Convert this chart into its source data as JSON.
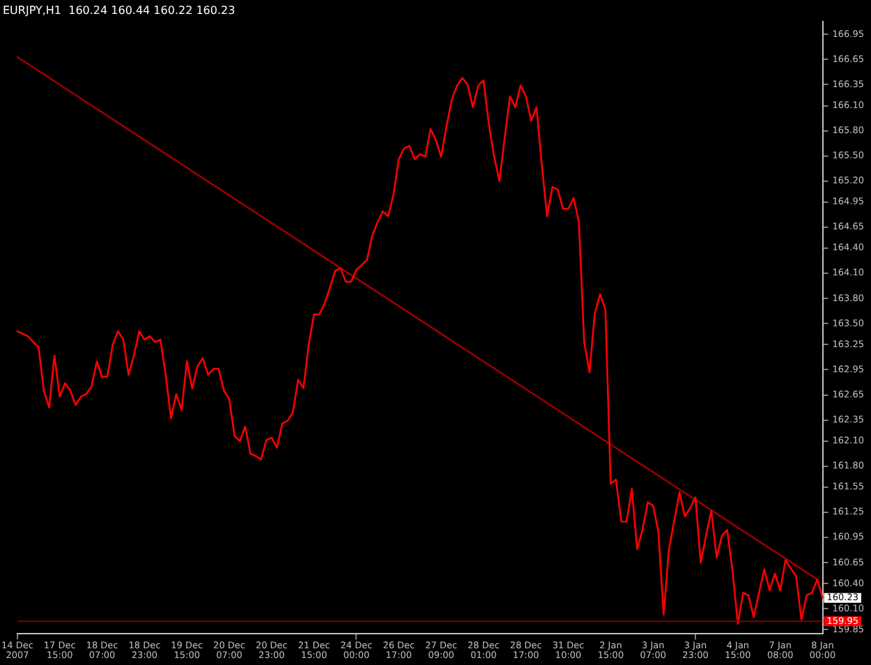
{
  "chart_data": {
    "type": "line",
    "title": "EURJPY,H1  160.24 160.44 160.22 160.23",
    "categories": [
      "14 Dec 2007",
      null,
      null,
      null,
      null,
      null,
      null,
      null,
      "17 Dec 15:00",
      null,
      null,
      null,
      null,
      null,
      null,
      null,
      "18 Dec 07:00",
      null,
      null,
      null,
      null,
      null,
      null,
      null,
      "18 Dec 23:00",
      null,
      null,
      null,
      null,
      null,
      null,
      null,
      "19 Dec 15:00",
      null,
      null,
      null,
      null,
      null,
      null,
      null,
      "20 Dec 07:00",
      null,
      null,
      null,
      null,
      null,
      null,
      null,
      "20 Dec 23:00",
      null,
      null,
      null,
      null,
      null,
      null,
      null,
      "21 Dec 15:00",
      null,
      null,
      null,
      null,
      null,
      null,
      null,
      "24 Dec 00:00",
      null,
      null,
      null,
      null,
      null,
      null,
      null,
      "26 Dec 17:00",
      null,
      null,
      null,
      null,
      null,
      null,
      null,
      "27 Dec 09:00",
      null,
      null,
      null,
      null,
      null,
      null,
      null,
      "28 Dec 01:00",
      null,
      null,
      null,
      null,
      null,
      null,
      null,
      "28 Dec 17:00",
      null,
      null,
      null,
      null,
      null,
      null,
      null,
      "31 Dec 10:00",
      null,
      null,
      null,
      null,
      null,
      null,
      null,
      "2 Jan 15:00",
      null,
      null,
      null,
      null,
      null,
      null,
      null,
      "3 Jan 07:00",
      null,
      null,
      null,
      null,
      null,
      null,
      null,
      "3 Jan 23:00",
      null,
      null,
      null,
      null,
      null,
      null,
      null,
      "4 Jan 15:00",
      null,
      null,
      null,
      null,
      null,
      null,
      null,
      "7 Jan 08:00",
      null,
      null,
      null,
      null,
      null,
      null,
      null,
      "8 Jan 00:00"
    ],
    "ylim": [
      159.8,
      167.1
    ],
    "yticks": [
      166.95,
      166.65,
      166.35,
      {
        "value": 166.1,
        "label": "166.10"
      },
      {
        "value": 165.8,
        "label": "165.80"
      },
      {
        "value": 165.5,
        "label": "165.50"
      },
      {
        "value": 165.2,
        "label": "165.20"
      },
      164.95,
      164.65,
      {
        "value": 164.4,
        "label": "164.40"
      },
      {
        "value": 164.1,
        "label": "164.10"
      },
      {
        "value": 163.8,
        "label": "163.80"
      },
      {
        "value": 163.5,
        "label": "163.50"
      },
      163.25,
      162.95,
      162.65,
      162.35,
      {
        "value": 162.1,
        "label": "162.10"
      },
      {
        "value": 161.8,
        "label": "161.80"
      },
      161.55,
      161.25,
      160.95,
      160.65,
      {
        "value": 160.4,
        "label": "160.40"
      },
      {
        "value": 160.1,
        "label": "160.10"
      },
      159.85
    ],
    "grid": false,
    "legend": false,
    "marker": "none",
    "line_style": "solid",
    "series": [
      {
        "color": "#ff0000",
        "values": [
          163.41,
          163.38,
          163.35,
          163.28,
          163.22,
          162.7,
          162.5,
          163.12,
          162.63,
          162.79,
          162.7,
          162.53,
          162.63,
          162.66,
          162.75,
          163.05,
          162.86,
          162.87,
          163.25,
          163.41,
          163.31,
          162.89,
          163.12,
          163.41,
          163.31,
          163.35,
          163.28,
          163.31,
          162.89,
          162.37,
          162.66,
          162.47,
          163.05,
          162.73,
          162.99,
          163.09,
          162.89,
          162.96,
          162.96,
          162.7,
          162.6,
          162.16,
          162.1,
          162.27,
          161.95,
          161.92,
          161.88,
          162.11,
          162.14,
          162.02,
          162.31,
          162.34,
          162.44,
          162.83,
          162.73,
          163.25,
          163.61,
          163.61,
          163.74,
          163.93,
          164.13,
          164.16,
          164.0,
          164.0,
          164.14,
          164.2,
          164.26,
          164.55,
          164.71,
          164.84,
          164.78,
          165.04,
          165.46,
          165.59,
          165.62,
          165.46,
          165.52,
          165.49,
          165.82,
          165.69,
          165.49,
          165.85,
          166.17,
          166.34,
          166.43,
          166.35,
          166.08,
          166.34,
          166.4,
          165.88,
          165.49,
          165.2,
          165.72,
          166.21,
          166.08,
          166.34,
          166.21,
          165.92,
          166.08,
          165.39,
          164.78,
          165.13,
          165.1,
          164.87,
          164.87,
          165.0,
          164.71,
          163.28,
          162.92,
          163.62,
          163.85,
          163.67,
          161.59,
          161.64,
          161.14,
          161.14,
          161.53,
          160.81,
          161.04,
          161.37,
          161.33,
          161.02,
          160.03,
          160.81,
          161.15,
          161.49,
          161.2,
          161.3,
          161.43,
          160.65,
          160.97,
          161.27,
          160.71,
          160.97,
          161.04,
          160.55,
          159.92,
          160.29,
          160.26,
          160.0,
          160.29,
          160.57,
          160.32,
          160.52,
          160.32,
          160.68,
          160.58,
          160.49,
          159.97,
          160.26,
          160.29,
          160.45,
          160.23
        ]
      },
      {
        "type": "line",
        "color": "#990000",
        "values": [
          166.68,
          null,
          null,
          null,
          null,
          null,
          null,
          null,
          null,
          null,
          null,
          null,
          null,
          null,
          null,
          null,
          null,
          null,
          null,
          null,
          null,
          null,
          null,
          null,
          null,
          null,
          null,
          null,
          null,
          null,
          null,
          null,
          null,
          null,
          null,
          null,
          null,
          null,
          null,
          null,
          null,
          null,
          null,
          null,
          null,
          null,
          null,
          null,
          null,
          null,
          null,
          null,
          null,
          null,
          null,
          null,
          null,
          null,
          null,
          null,
          null,
          null,
          null,
          null,
          null,
          null,
          null,
          null,
          null,
          null,
          null,
          null,
          null,
          null,
          null,
          null,
          null,
          null,
          null,
          null,
          null,
          null,
          null,
          null,
          null,
          null,
          null,
          null,
          null,
          null,
          null,
          null,
          null,
          null,
          null,
          null,
          null,
          null,
          null,
          null,
          null,
          null,
          null,
          null,
          null,
          null,
          null,
          null,
          null,
          null,
          null,
          null,
          null,
          null,
          null,
          null,
          null,
          null,
          null,
          null,
          null,
          null,
          null,
          null,
          null,
          null,
          null,
          null,
          null,
          null,
          null,
          null,
          null,
          null,
          null,
          null,
          null,
          null,
          null,
          null,
          null,
          null,
          null,
          null,
          null,
          null,
          null,
          null,
          null,
          null,
          null,
          160.45,
          null
        ]
      }
    ],
    "ref_lines": [
      {
        "axis": "y",
        "value": 159.95,
        "label": "159.95",
        "color": "#800000"
      }
    ],
    "annotations": [
      "160.23"
    ]
  }
}
